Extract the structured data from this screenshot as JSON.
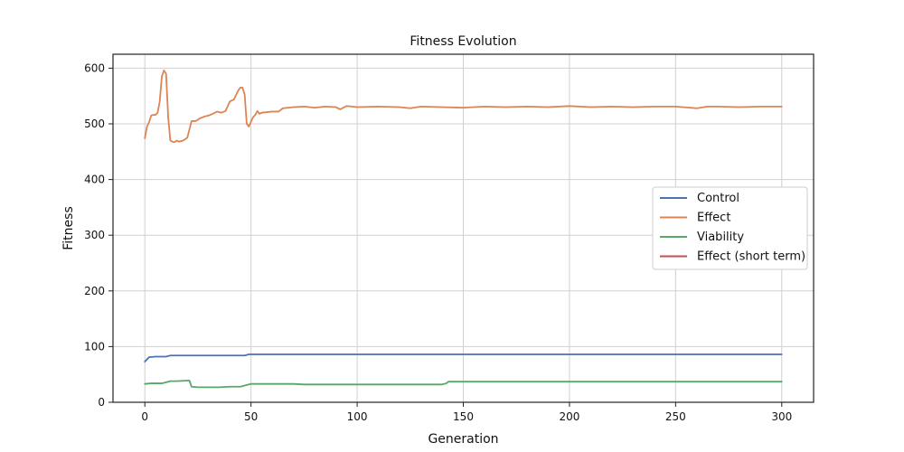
{
  "chart_data": {
    "type": "line",
    "title": "Fitness Evolution",
    "xlabel": "Generation",
    "ylabel": "Fitness",
    "xlim": [
      -15,
      315
    ],
    "ylim": [
      0,
      625
    ],
    "x_ticks": [
      0,
      50,
      100,
      150,
      200,
      250,
      300
    ],
    "y_ticks": [
      0,
      100,
      200,
      300,
      400,
      500,
      600
    ],
    "grid": true,
    "legend_position": "center-right",
    "series": [
      {
        "name": "Control",
        "color": "#4c72b0",
        "points": [
          [
            0,
            73
          ],
          [
            2,
            81
          ],
          [
            5,
            82
          ],
          [
            10,
            82
          ],
          [
            12,
            84
          ],
          [
            15,
            84
          ],
          [
            20,
            84
          ],
          [
            30,
            84
          ],
          [
            40,
            84
          ],
          [
            47,
            84
          ],
          [
            49,
            86
          ],
          [
            60,
            86
          ],
          [
            80,
            86
          ],
          [
            100,
            86
          ],
          [
            150,
            86
          ],
          [
            200,
            86
          ],
          [
            250,
            86
          ],
          [
            300,
            86
          ]
        ]
      },
      {
        "name": "Effect",
        "color": "#dd8452",
        "points": [
          [
            0,
            474
          ],
          [
            1,
            495
          ],
          [
            2,
            503
          ],
          [
            3,
            515
          ],
          [
            4,
            516
          ],
          [
            5,
            516
          ],
          [
            6,
            520
          ],
          [
            7,
            540
          ],
          [
            8,
            585
          ],
          [
            9,
            596
          ],
          [
            10,
            590
          ],
          [
            11,
            512
          ],
          [
            12,
            470
          ],
          [
            13,
            468
          ],
          [
            14,
            467
          ],
          [
            15,
            470
          ],
          [
            16,
            468
          ],
          [
            18,
            470
          ],
          [
            20,
            475
          ],
          [
            21,
            490
          ],
          [
            22,
            505
          ],
          [
            24,
            505
          ],
          [
            26,
            510
          ],
          [
            28,
            513
          ],
          [
            30,
            515
          ],
          [
            32,
            518
          ],
          [
            34,
            522
          ],
          [
            36,
            520
          ],
          [
            38,
            523
          ],
          [
            40,
            540
          ],
          [
            42,
            544
          ],
          [
            44,
            560
          ],
          [
            45,
            565
          ],
          [
            46,
            565
          ],
          [
            47,
            553
          ],
          [
            48,
            500
          ],
          [
            49,
            495
          ],
          [
            50,
            504
          ],
          [
            51,
            512
          ],
          [
            52,
            516
          ],
          [
            53,
            523
          ],
          [
            54,
            518
          ],
          [
            55,
            520
          ],
          [
            60,
            522
          ],
          [
            63,
            522
          ],
          [
            65,
            528
          ],
          [
            70,
            530
          ],
          [
            75,
            531
          ],
          [
            80,
            529
          ],
          [
            85,
            531
          ],
          [
            90,
            530
          ],
          [
            92,
            526
          ],
          [
            95,
            532
          ],
          [
            100,
            530
          ],
          [
            110,
            531
          ],
          [
            120,
            530
          ],
          [
            125,
            528
          ],
          [
            130,
            531
          ],
          [
            140,
            530
          ],
          [
            150,
            529
          ],
          [
            160,
            531
          ],
          [
            170,
            530
          ],
          [
            180,
            531
          ],
          [
            190,
            530
          ],
          [
            200,
            532
          ],
          [
            210,
            530
          ],
          [
            220,
            531
          ],
          [
            230,
            530
          ],
          [
            240,
            531
          ],
          [
            250,
            531
          ],
          [
            260,
            528
          ],
          [
            265,
            531
          ],
          [
            270,
            531
          ],
          [
            280,
            530
          ],
          [
            290,
            531
          ],
          [
            300,
            531
          ]
        ]
      },
      {
        "name": "Viability",
        "color": "#55a868",
        "points": [
          [
            0,
            33
          ],
          [
            3,
            34
          ],
          [
            8,
            34
          ],
          [
            10,
            36
          ],
          [
            12,
            38
          ],
          [
            15,
            38
          ],
          [
            20,
            39
          ],
          [
            21,
            39
          ],
          [
            22,
            28
          ],
          [
            25,
            27
          ],
          [
            30,
            27
          ],
          [
            35,
            27
          ],
          [
            40,
            28
          ],
          [
            45,
            28
          ],
          [
            47,
            30
          ],
          [
            48,
            31
          ],
          [
            50,
            33
          ],
          [
            60,
            33
          ],
          [
            70,
            33
          ],
          [
            75,
            32
          ],
          [
            80,
            32
          ],
          [
            100,
            32
          ],
          [
            120,
            32
          ],
          [
            140,
            32
          ],
          [
            142,
            34
          ],
          [
            143,
            37
          ],
          [
            150,
            37
          ],
          [
            170,
            37
          ],
          [
            200,
            37
          ],
          [
            220,
            37
          ],
          [
            250,
            37
          ],
          [
            275,
            37
          ],
          [
            300,
            37
          ]
        ]
      },
      {
        "name": "Effect (short term)",
        "color": "#c44e52",
        "points": []
      }
    ]
  }
}
